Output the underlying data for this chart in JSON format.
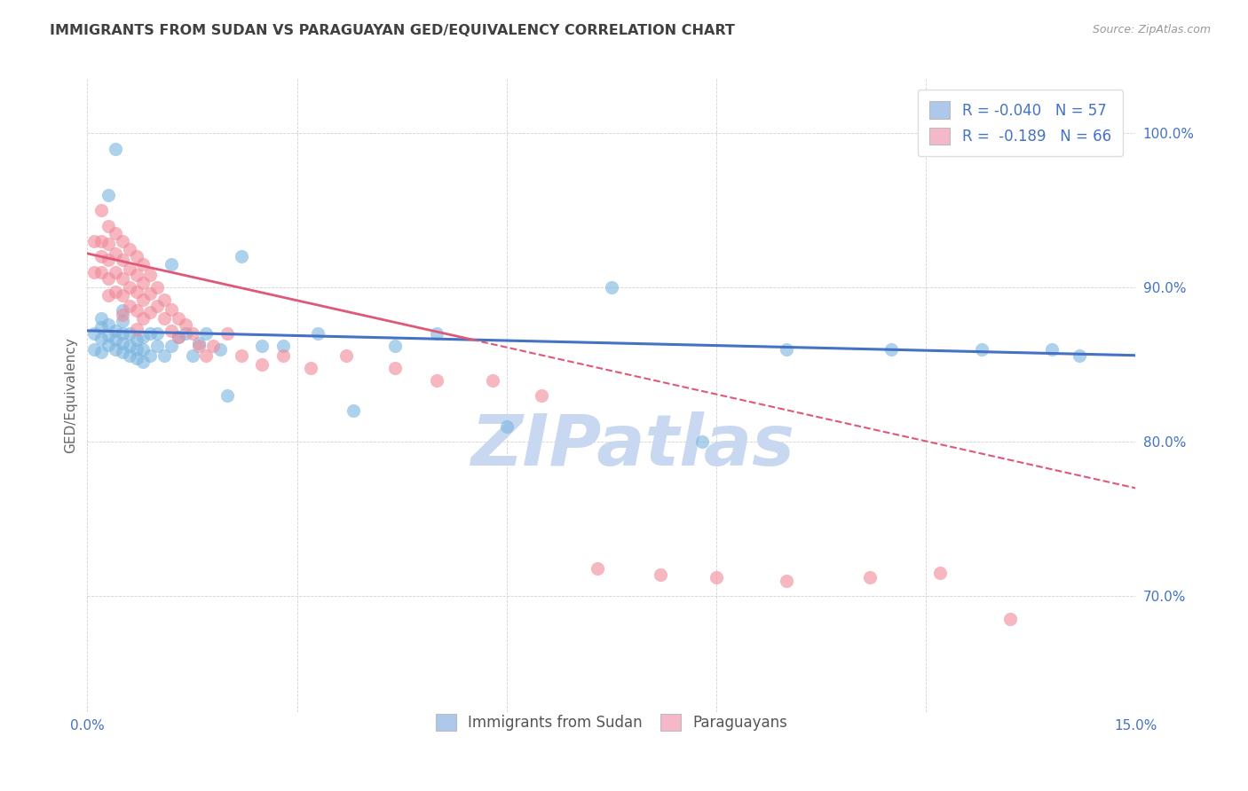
{
  "title": "IMMIGRANTS FROM SUDAN VS PARAGUAYAN GED/EQUIVALENCY CORRELATION CHART",
  "source": "Source: ZipAtlas.com",
  "ylabel": "GED/Equivalency",
  "yticks": [
    "70.0%",
    "80.0%",
    "90.0%",
    "100.0%"
  ],
  "ytick_vals": [
    0.7,
    0.8,
    0.9,
    1.0
  ],
  "xlim": [
    0.0,
    0.15
  ],
  "ylim": [
    0.625,
    1.035
  ],
  "legend1_label": "R = -0.040   N = 57",
  "legend2_label": "R =  -0.189   N = 66",
  "legend_sudan_color": "#adc8ea",
  "legend_paraguay_color": "#f5b8c8",
  "sudan_scatter_color": "#7ab4e0",
  "paraguay_scatter_color": "#f08898",
  "sudan_line_color": "#4472c4",
  "paraguay_line_color": "#e05878",
  "watermark": "ZIPatlas",
  "watermark_color": "#c8d8f0",
  "background_color": "#ffffff",
  "title_color": "#404040",
  "axis_color": "#4472c4",
  "sudan_x": [
    0.001,
    0.001,
    0.002,
    0.002,
    0.002,
    0.002,
    0.003,
    0.003,
    0.003,
    0.003,
    0.004,
    0.004,
    0.004,
    0.004,
    0.005,
    0.005,
    0.005,
    0.005,
    0.005,
    0.006,
    0.006,
    0.006,
    0.007,
    0.007,
    0.007,
    0.008,
    0.008,
    0.008,
    0.009,
    0.009,
    0.01,
    0.01,
    0.011,
    0.012,
    0.012,
    0.013,
    0.014,
    0.015,
    0.016,
    0.017,
    0.019,
    0.02,
    0.022,
    0.025,
    0.028,
    0.033,
    0.038,
    0.044,
    0.05,
    0.06,
    0.075,
    0.088,
    0.1,
    0.115,
    0.128,
    0.138,
    0.142
  ],
  "sudan_y": [
    0.87,
    0.86,
    0.858,
    0.867,
    0.874,
    0.88,
    0.863,
    0.869,
    0.876,
    0.96,
    0.86,
    0.866,
    0.872,
    0.99,
    0.858,
    0.864,
    0.87,
    0.878,
    0.885,
    0.856,
    0.862,
    0.87,
    0.854,
    0.86,
    0.866,
    0.852,
    0.86,
    0.868,
    0.856,
    0.87,
    0.862,
    0.87,
    0.856,
    0.862,
    0.915,
    0.868,
    0.87,
    0.856,
    0.864,
    0.87,
    0.86,
    0.83,
    0.92,
    0.862,
    0.862,
    0.87,
    0.82,
    0.862,
    0.87,
    0.81,
    0.9,
    0.8,
    0.86,
    0.86,
    0.86,
    0.86,
    0.856
  ],
  "paraguay_x": [
    0.001,
    0.001,
    0.002,
    0.002,
    0.002,
    0.002,
    0.003,
    0.003,
    0.003,
    0.003,
    0.003,
    0.004,
    0.004,
    0.004,
    0.004,
    0.005,
    0.005,
    0.005,
    0.005,
    0.005,
    0.006,
    0.006,
    0.006,
    0.006,
    0.007,
    0.007,
    0.007,
    0.007,
    0.007,
    0.008,
    0.008,
    0.008,
    0.008,
    0.009,
    0.009,
    0.009,
    0.01,
    0.01,
    0.011,
    0.011,
    0.012,
    0.012,
    0.013,
    0.013,
    0.014,
    0.015,
    0.016,
    0.017,
    0.018,
    0.02,
    0.022,
    0.025,
    0.028,
    0.032,
    0.037,
    0.044,
    0.05,
    0.058,
    0.065,
    0.073,
    0.082,
    0.09,
    0.1,
    0.112,
    0.122,
    0.132
  ],
  "paraguay_y": [
    0.93,
    0.91,
    0.95,
    0.93,
    0.92,
    0.91,
    0.94,
    0.928,
    0.918,
    0.906,
    0.895,
    0.935,
    0.922,
    0.91,
    0.897,
    0.93,
    0.918,
    0.906,
    0.895,
    0.882,
    0.925,
    0.912,
    0.9,
    0.888,
    0.92,
    0.908,
    0.897,
    0.885,
    0.873,
    0.915,
    0.903,
    0.892,
    0.88,
    0.908,
    0.896,
    0.884,
    0.9,
    0.888,
    0.892,
    0.88,
    0.886,
    0.872,
    0.88,
    0.868,
    0.876,
    0.87,
    0.862,
    0.856,
    0.862,
    0.87,
    0.856,
    0.85,
    0.856,
    0.848,
    0.856,
    0.848,
    0.84,
    0.84,
    0.83,
    0.718,
    0.714,
    0.712,
    0.71,
    0.712,
    0.715,
    0.685
  ]
}
